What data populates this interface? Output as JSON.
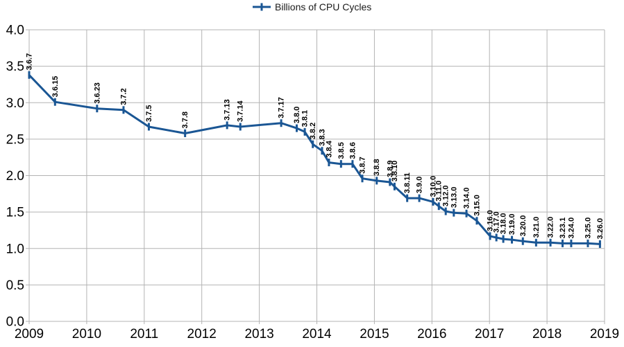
{
  "colors": {
    "line": "#1a5694",
    "grid": "#b3b3b3",
    "text": "#000000",
    "background": "#ffffff"
  },
  "chart_data": {
    "type": "line",
    "title": "",
    "legend_position": "top-center",
    "grid": true,
    "marker": "plus",
    "x_axis": {
      "min": 2009,
      "max": 2019,
      "tick_values": [
        2009,
        2010,
        2011,
        2012,
        2013,
        2014,
        2015,
        2016,
        2017,
        2018,
        2019
      ],
      "tick_labels": [
        "2009",
        "2010",
        "2011",
        "2012",
        "2013",
        "2014",
        "2015",
        "2016",
        "2017",
        "2018",
        "2019"
      ]
    },
    "y_axis": {
      "min": 0.0,
      "max": 4.0,
      "tick_values": [
        0.0,
        0.5,
        1.0,
        1.5,
        2.0,
        2.5,
        3.0,
        3.5,
        4.0
      ],
      "tick_labels": [
        "0.0",
        "0.5",
        "1.0",
        "1.5",
        "2.0",
        "2.5",
        "3.0",
        "3.5",
        "4.0"
      ]
    },
    "series": [
      {
        "name": "Billions of CPU Cycles",
        "color": "#1a5694",
        "points": [
          {
            "label": "3.6.7",
            "x": 2009.0,
            "y": 3.38
          },
          {
            "label": "3.6.15",
            "x": 2009.45,
            "y": 3.01
          },
          {
            "label": "3.6.23",
            "x": 2010.18,
            "y": 2.92
          },
          {
            "label": "3.7.2",
            "x": 2010.64,
            "y": 2.9
          },
          {
            "label": "3.7.5",
            "x": 2011.08,
            "y": 2.67
          },
          {
            "label": "3.7.8",
            "x": 2011.71,
            "y": 2.58
          },
          {
            "label": "3.7.13",
            "x": 2012.44,
            "y": 2.69
          },
          {
            "label": "3.7.14",
            "x": 2012.67,
            "y": 2.67
          },
          {
            "label": "3.7.17",
            "x": 2013.38,
            "y": 2.72
          },
          {
            "label": "3.8.0",
            "x": 2013.65,
            "y": 2.65
          },
          {
            "label": "3.8.1",
            "x": 2013.79,
            "y": 2.6
          },
          {
            "label": "3.8.2",
            "x": 2013.93,
            "y": 2.43
          },
          {
            "label": "3.8.3",
            "x": 2014.09,
            "y": 2.34
          },
          {
            "label": "3.8.4",
            "x": 2014.21,
            "y": 2.18
          },
          {
            "label": "3.8.5",
            "x": 2014.42,
            "y": 2.16
          },
          {
            "label": "3.8.6",
            "x": 2014.62,
            "y": 2.16
          },
          {
            "label": "3.8.7",
            "x": 2014.79,
            "y": 1.96
          },
          {
            "label": "3.8.8",
            "x": 2015.04,
            "y": 1.93
          },
          {
            "label": "3.8.9",
            "x": 2015.27,
            "y": 1.91
          },
          {
            "label": "3.8.10",
            "x": 2015.35,
            "y": 1.85
          },
          {
            "label": "3.8.11",
            "x": 2015.57,
            "y": 1.69
          },
          {
            "label": "3.9.0",
            "x": 2015.78,
            "y": 1.69
          },
          {
            "label": "3.10.0",
            "x": 2016.02,
            "y": 1.64
          },
          {
            "label": "3.11.0",
            "x": 2016.12,
            "y": 1.58
          },
          {
            "label": "3.12.0",
            "x": 2016.24,
            "y": 1.51
          },
          {
            "label": "3.13.0",
            "x": 2016.38,
            "y": 1.49
          },
          {
            "label": "3.14.0",
            "x": 2016.6,
            "y": 1.48
          },
          {
            "label": "3.15.0",
            "x": 2016.78,
            "y": 1.38
          },
          {
            "label": "3.16.0",
            "x": 2017.01,
            "y": 1.17
          },
          {
            "label": "3.17.0",
            "x": 2017.12,
            "y": 1.15
          },
          {
            "label": "3.18.0",
            "x": 2017.24,
            "y": 1.13
          },
          {
            "label": "3.19.0",
            "x": 2017.39,
            "y": 1.12
          },
          {
            "label": "3.20.0",
            "x": 2017.58,
            "y": 1.1
          },
          {
            "label": "3.21.0",
            "x": 2017.81,
            "y": 1.08
          },
          {
            "label": "3.22.0",
            "x": 2018.06,
            "y": 1.08
          },
          {
            "label": "3.23.1",
            "x": 2018.27,
            "y": 1.07
          },
          {
            "label": "3.24.0",
            "x": 2018.42,
            "y": 1.07
          },
          {
            "label": "3.25.0",
            "x": 2018.71,
            "y": 1.07
          },
          {
            "label": "3.26.0",
            "x": 2018.92,
            "y": 1.06
          }
        ]
      }
    ]
  }
}
